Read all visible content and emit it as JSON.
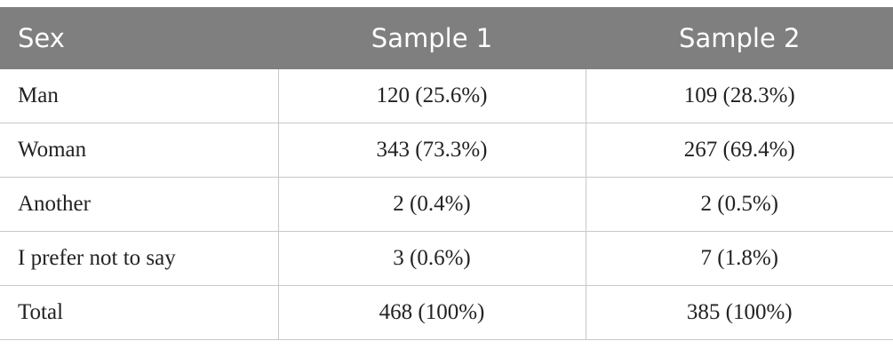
{
  "table": {
    "header": [
      "Sex",
      "Sample 1",
      "Sample 2"
    ],
    "rows": [
      [
        "Man",
        "120 (25.6%)",
        "109 (28.3%)"
      ],
      [
        "Woman",
        "343 (73.3%)",
        "267 (69.4%)"
      ],
      [
        "Another",
        "2 (0.4%)",
        "2 (0.5%)"
      ],
      [
        "I prefer not to say",
        "3 (0.6%)",
        "7 (1.8%)"
      ],
      [
        "Total",
        "468 (100%)",
        "385 (100%)"
      ]
    ]
  }
}
